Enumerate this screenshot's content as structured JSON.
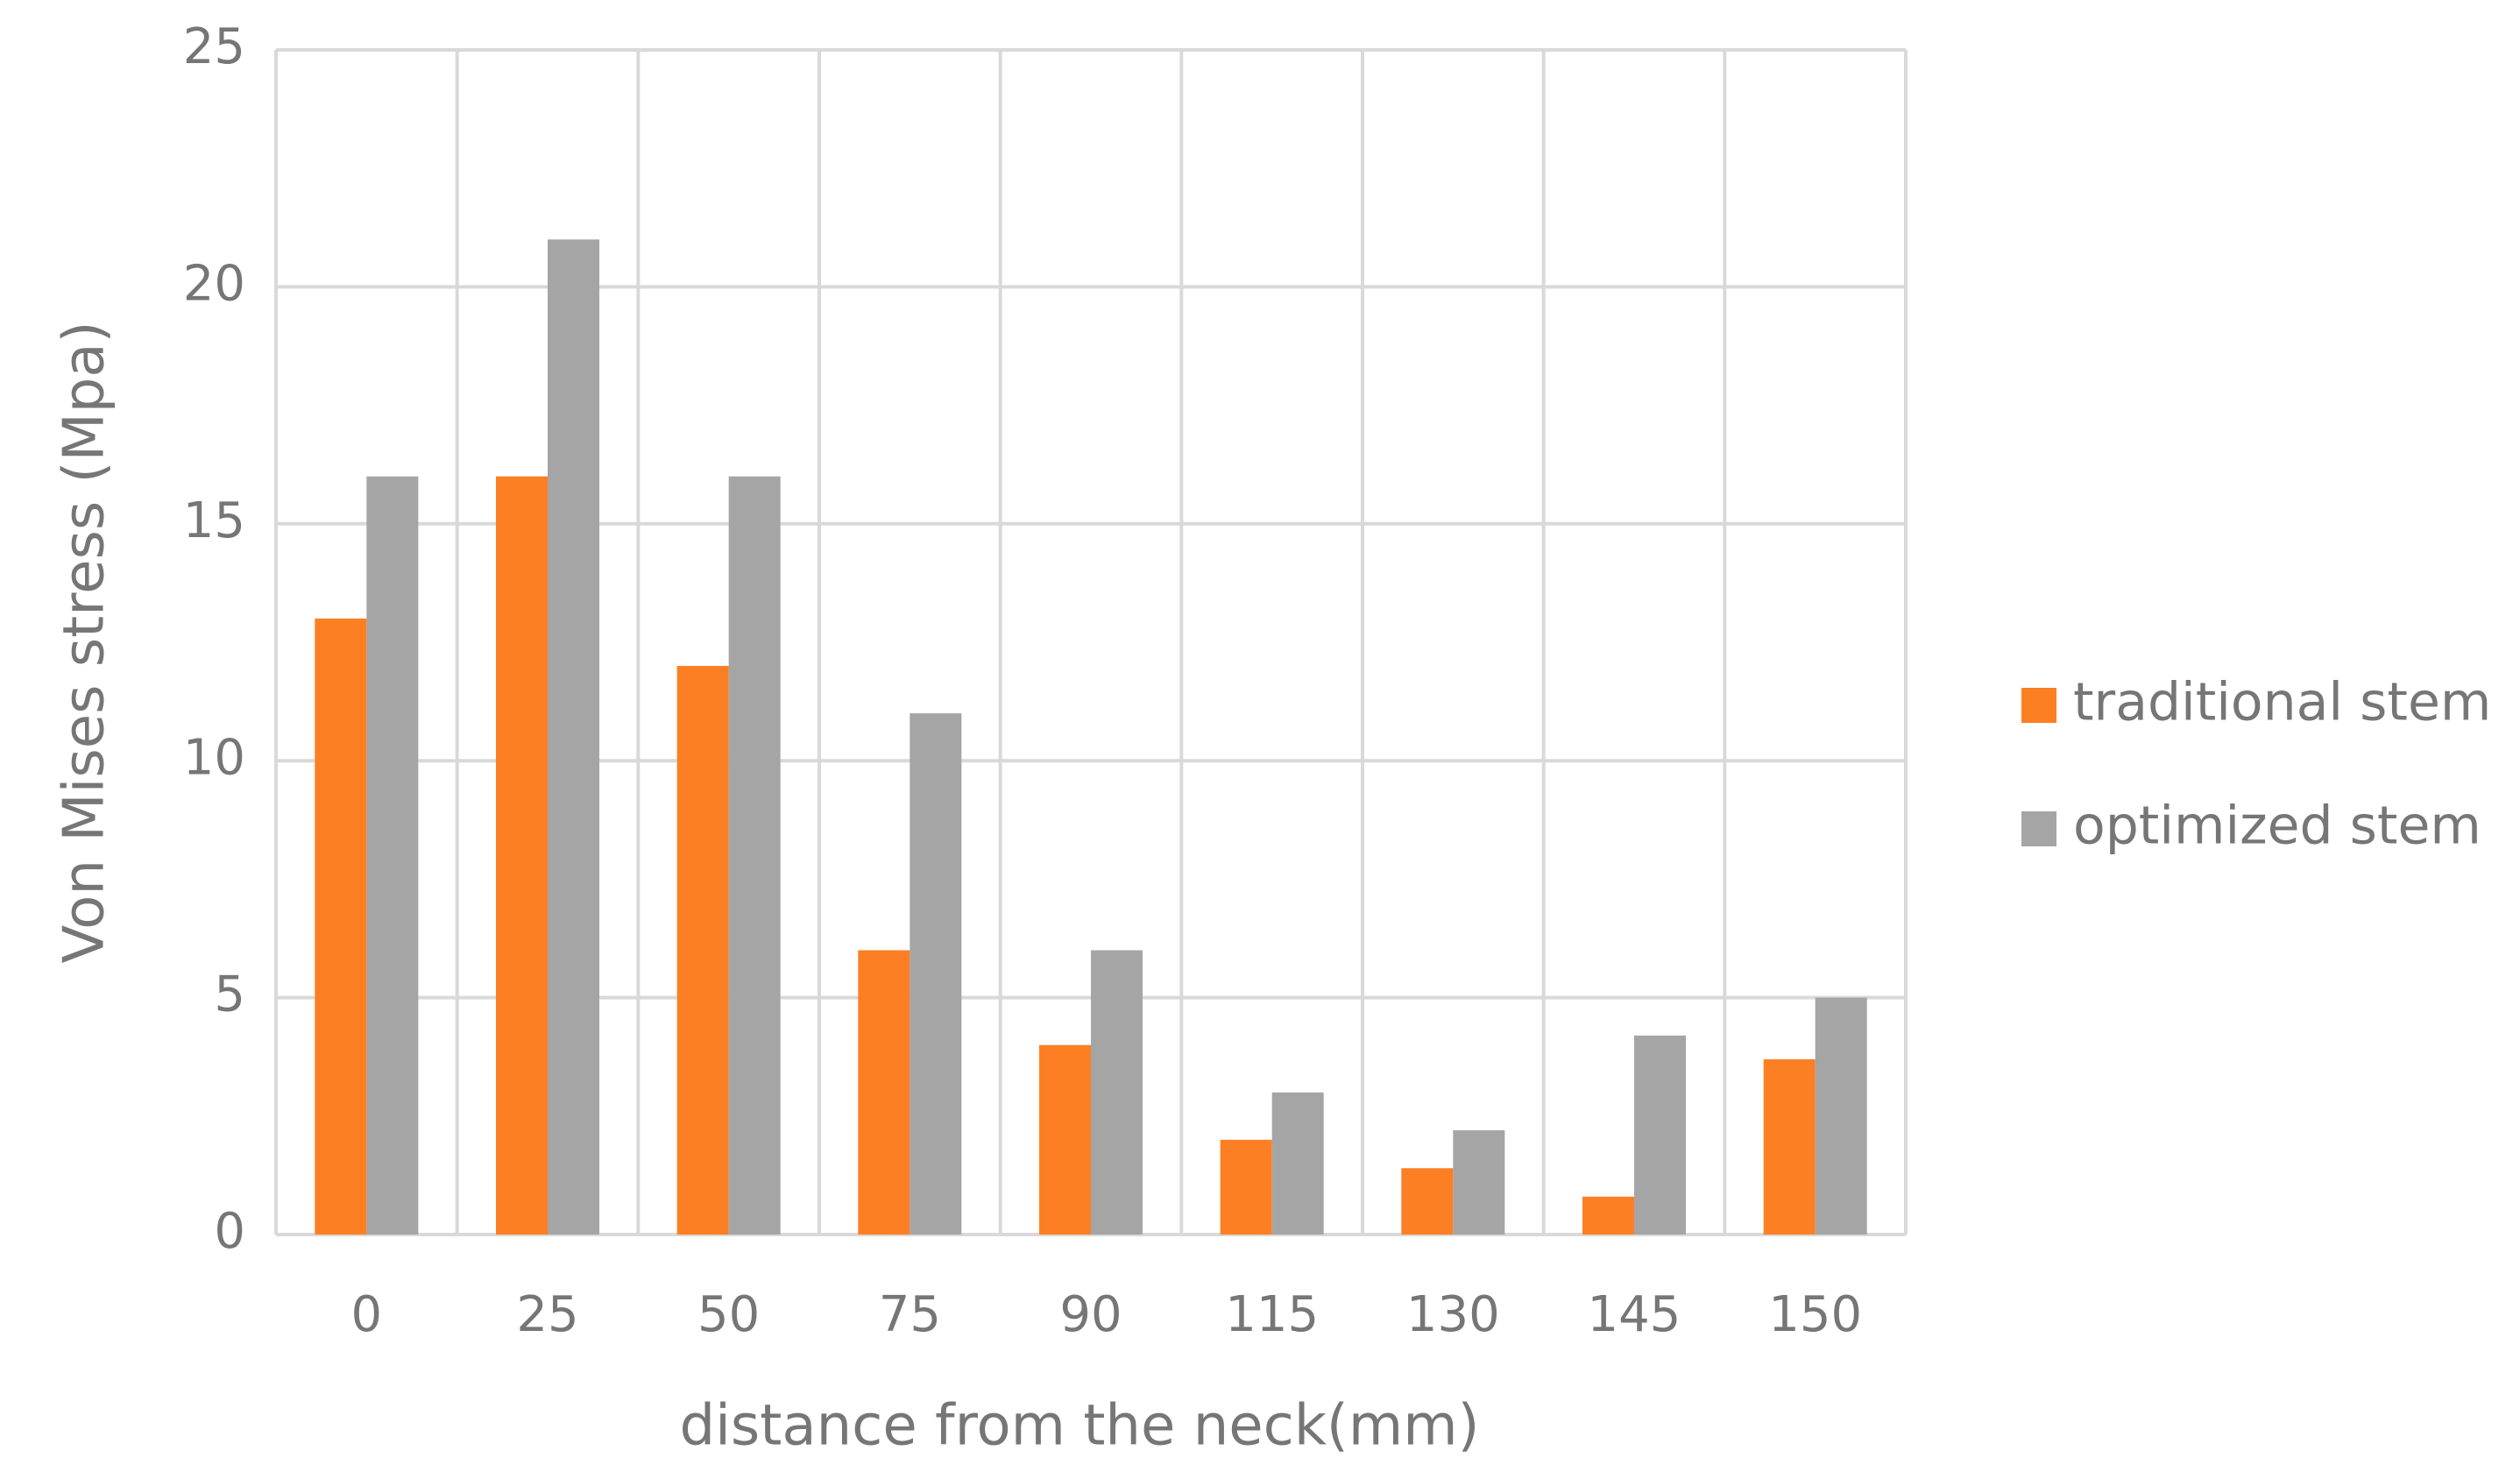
{
  "chart_data": {
    "type": "bar",
    "x_label": "distance from the neck(mm)",
    "y_label": "Von Mises stress (Mpa)",
    "categories": [
      "0",
      "25",
      "50",
      "75",
      "90",
      "115",
      "130",
      "145",
      "150"
    ],
    "series": [
      {
        "name": "traditional stem",
        "color": "#fd7f23",
        "values": [
          13,
          16,
          12,
          6,
          4,
          2,
          1.4,
          0.8,
          3.7
        ]
      },
      {
        "name": "optimized stem",
        "color": "#a5a5a5",
        "values": [
          16,
          21,
          16,
          11,
          6,
          3,
          2.2,
          4.2,
          5
        ]
      }
    ],
    "ylim": [
      0,
      25
    ],
    "yticks": [
      0,
      5,
      10,
      15,
      20,
      25
    ],
    "grid": true,
    "legend": "right"
  }
}
